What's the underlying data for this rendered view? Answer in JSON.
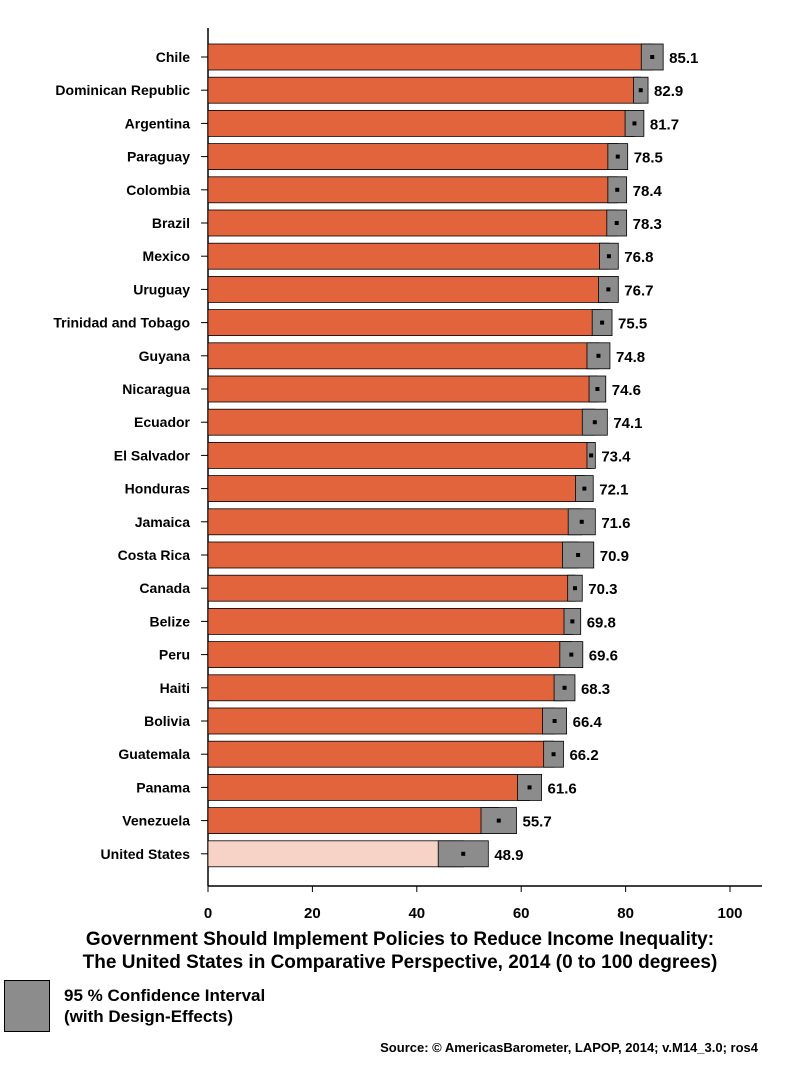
{
  "chart_data": {
    "type": "bar",
    "orientation": "horizontal",
    "categories": [
      "Chile",
      "Dominican Republic",
      "Argentina",
      "Paraguay",
      "Colombia",
      "Brazil",
      "Mexico",
      "Uruguay",
      "Trinidad and Tobago",
      "Guyana",
      "Nicaragua",
      "Ecuador",
      "El Salvador",
      "Honduras",
      "Jamaica",
      "Costa Rica",
      "Canada",
      "Belize",
      "Peru",
      "Haiti",
      "Bolivia",
      "Guatemala",
      "Panama",
      "Venezuela",
      "United States"
    ],
    "values": [
      85.1,
      82.9,
      81.7,
      78.5,
      78.4,
      78.3,
      76.8,
      76.7,
      75.5,
      74.8,
      74.6,
      74.1,
      73.4,
      72.1,
      71.6,
      70.9,
      70.3,
      69.8,
      69.6,
      68.3,
      66.4,
      66.2,
      61.6,
      55.7,
      48.9
    ],
    "value_labels": [
      "85.1",
      "82.9",
      "81.7",
      "78.5",
      "78.4",
      "78.3",
      "76.8",
      "76.7",
      "75.5",
      "74.8",
      "74.6",
      "74.1",
      "73.4",
      "72.1",
      "71.6",
      "70.9",
      "70.3",
      "69.8",
      "69.6",
      "68.3",
      "66.4",
      "66.2",
      "61.6",
      "55.7",
      "48.9"
    ],
    "ci_low": [
      83.0,
      81.5,
      79.9,
      76.6,
      76.6,
      76.4,
      75.0,
      74.8,
      73.6,
      72.6,
      73.0,
      71.7,
      72.6,
      70.4,
      69.0,
      67.9,
      68.9,
      68.2,
      67.4,
      66.3,
      64.1,
      64.3,
      59.3,
      52.3,
      44.1
    ],
    "ci_high": [
      87.2,
      84.3,
      83.5,
      80.4,
      80.2,
      80.2,
      78.6,
      78.6,
      77.4,
      77.0,
      76.2,
      76.5,
      74.2,
      73.8,
      74.2,
      73.9,
      71.7,
      71.4,
      71.8,
      70.3,
      68.7,
      68.1,
      63.9,
      59.1,
      53.7
    ],
    "highlight_category": "United States",
    "x_ticks": [
      "0",
      "20",
      "40",
      "60",
      "80",
      "100"
    ],
    "xlim": [
      0,
      106
    ],
    "title": [
      "Government Should Implement Policies to Reduce Income Inequality:",
      "The United States in Comparative Perspective, 2014 (0 to 100 degrees)"
    ],
    "legend": [
      "95 % Confidence Interval",
      "(with Design-Effects)"
    ],
    "source": "Source: © AmericasBarometer, LAPOP, 2014; v.M14_3.0; ros4",
    "colors": {
      "bar": "#e2643d",
      "highlight_bar": "#f7d2c6",
      "ci": "#8c8c8c",
      "axis": "#000000"
    },
    "grid": false
  }
}
